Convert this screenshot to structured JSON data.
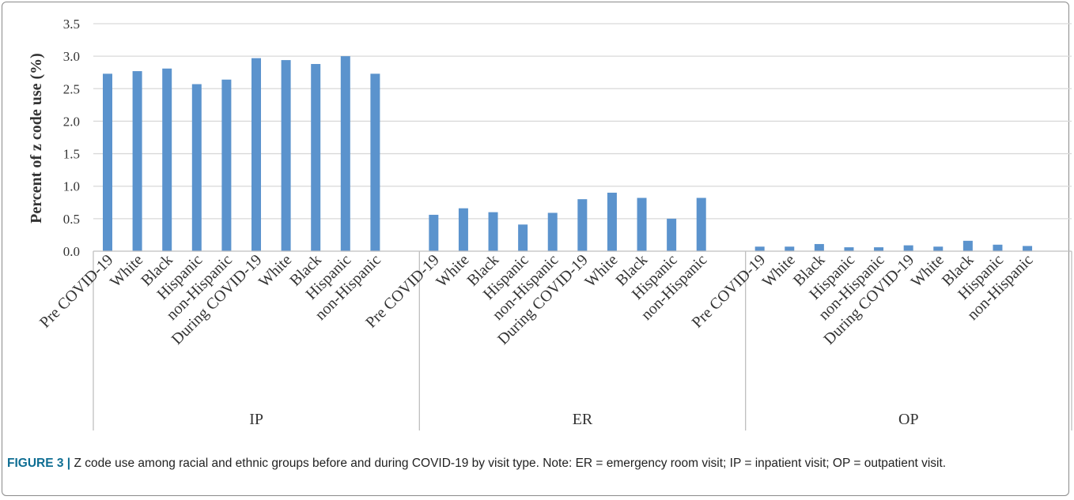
{
  "chart_data": {
    "type": "bar",
    "ylabel": "Percent of z code use (%)",
    "ylim": [
      0,
      3.5
    ],
    "yticks": [
      "0.0",
      "0.5",
      "1.0",
      "1.5",
      "2.0",
      "2.5",
      "3.0",
      "3.5"
    ],
    "grid": true,
    "bar_color": "#5b93cd",
    "groups": [
      {
        "name": "IP",
        "categories": [
          "Pre COVID-19",
          "White",
          "Black",
          "Hispanic",
          "non-Hispanic",
          "During COVID-19",
          "White",
          "Black",
          "Hispanic",
          "non-Hispanic"
        ],
        "values": [
          2.73,
          2.77,
          2.81,
          2.57,
          2.64,
          2.97,
          2.94,
          2.88,
          3.0,
          2.73
        ]
      },
      {
        "name": "ER",
        "categories": [
          "Pre COVID-19",
          "White",
          "Black",
          "Hispanic",
          "non-Hispanic",
          "During COVID-19",
          "White",
          "Black",
          "Hispanic",
          "non-Hispanic"
        ],
        "values": [
          0.56,
          0.66,
          0.6,
          0.41,
          0.59,
          0.8,
          0.9,
          0.82,
          0.5,
          0.82
        ]
      },
      {
        "name": "OP",
        "categories": [
          "Pre COVID-19",
          "White",
          "Black",
          "Hispanic",
          "non-Hispanic",
          "During COVID-19",
          "White",
          "Black",
          "Hispanic",
          "non-Hispanic"
        ],
        "values": [
          0.07,
          0.07,
          0.11,
          0.06,
          0.06,
          0.09,
          0.07,
          0.16,
          0.1,
          0.08
        ]
      }
    ]
  },
  "caption": {
    "label": "FIGURE 3 |",
    "text": " Z code use among racial and ethnic groups before and during COVID-19 by visit type. Note: ER = emergency room visit; IP = inpatient visit; OP = outpatient visit."
  }
}
